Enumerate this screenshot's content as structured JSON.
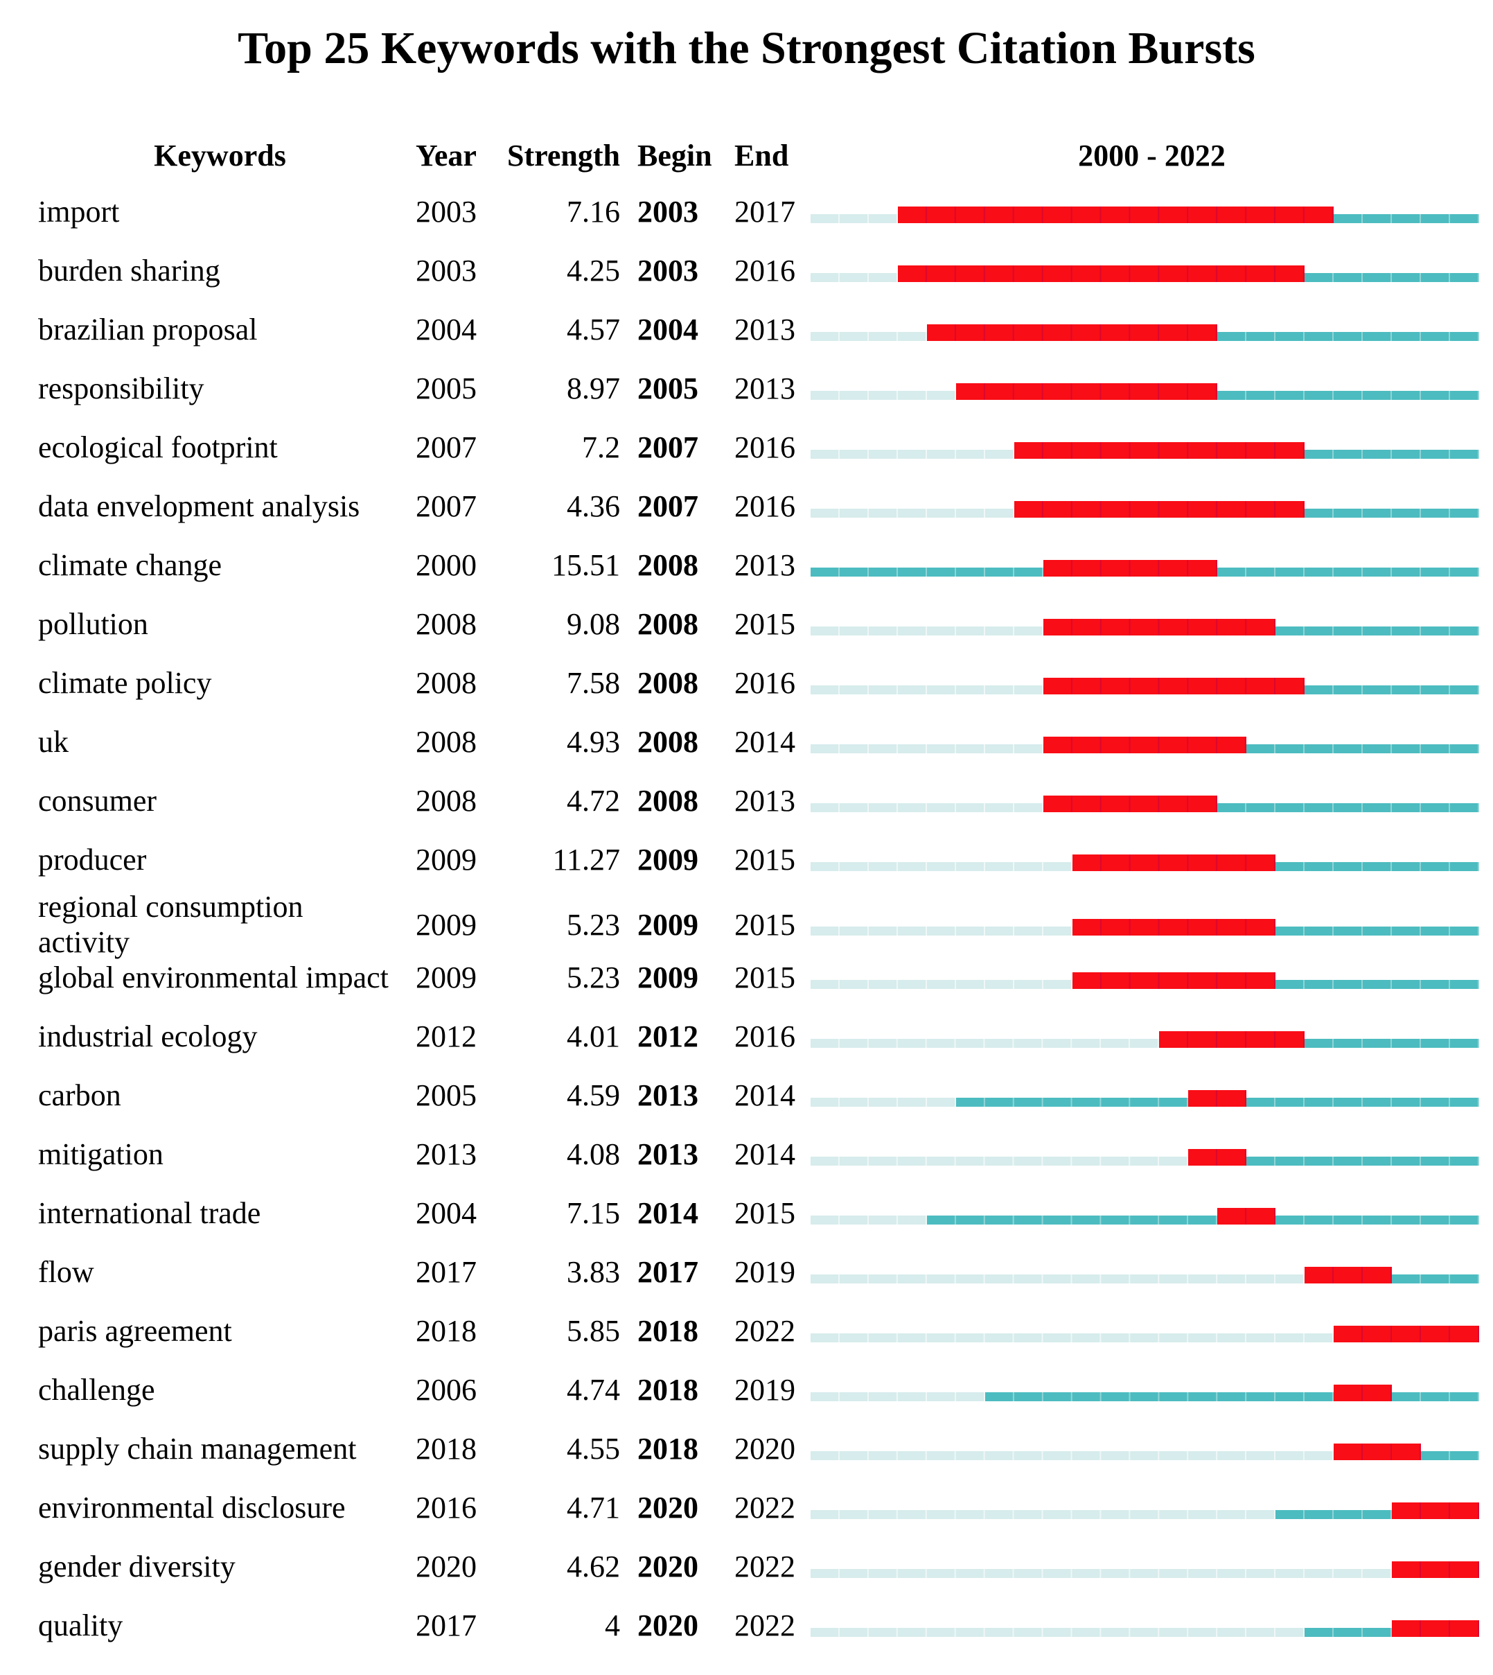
{
  "chart_data": {
    "type": "citation-burst-timeline",
    "title": "Top 25 Keywords with the Strongest Citation Bursts",
    "headers": {
      "keywords": "Keywords",
      "year": "Year",
      "strength": "Strength",
      "begin": "Begin",
      "end": "End",
      "range": "2000 - 2022"
    },
    "timeline": {
      "start": 2000,
      "end": 2022
    },
    "colors": {
      "pre_appearance": "#d7ecec",
      "active": "#4cbcc0",
      "burst": "#f90d16"
    },
    "legend_semantics": {
      "pre_appearance": "years before keyword first appeared",
      "active": "keyword active, no burst",
      "burst": "citation burst period (Begin–End)"
    },
    "rows": [
      {
        "keyword": "import",
        "year": 2003,
        "strength": "7.16",
        "begin": 2003,
        "end": 2017
      },
      {
        "keyword": "burden sharing",
        "year": 2003,
        "strength": "4.25",
        "begin": 2003,
        "end": 2016
      },
      {
        "keyword": "brazilian proposal",
        "year": 2004,
        "strength": "4.57",
        "begin": 2004,
        "end": 2013
      },
      {
        "keyword": "responsibility",
        "year": 2005,
        "strength": "8.97",
        "begin": 2005,
        "end": 2013
      },
      {
        "keyword": "ecological footprint",
        "year": 2007,
        "strength": "7.2",
        "begin": 2007,
        "end": 2016
      },
      {
        "keyword": "data envelopment analysis",
        "year": 2007,
        "strength": "4.36",
        "begin": 2007,
        "end": 2016
      },
      {
        "keyword": "climate change",
        "year": 2000,
        "strength": "15.51",
        "begin": 2008,
        "end": 2013
      },
      {
        "keyword": "pollution",
        "year": 2008,
        "strength": "9.08",
        "begin": 2008,
        "end": 2015
      },
      {
        "keyword": "climate policy",
        "year": 2008,
        "strength": "7.58",
        "begin": 2008,
        "end": 2016
      },
      {
        "keyword": "uk",
        "year": 2008,
        "strength": "4.93",
        "begin": 2008,
        "end": 2014
      },
      {
        "keyword": "consumer",
        "year": 2008,
        "strength": "4.72",
        "begin": 2008,
        "end": 2013
      },
      {
        "keyword": "producer",
        "year": 2009,
        "strength": "11.27",
        "begin": 2009,
        "end": 2015
      },
      {
        "keyword": "regional consumption activity",
        "year": 2009,
        "strength": "5.23",
        "begin": 2009,
        "end": 2015
      },
      {
        "keyword": "global environmental impact",
        "year": 2009,
        "strength": "5.23",
        "begin": 2009,
        "end": 2015
      },
      {
        "keyword": "industrial ecology",
        "year": 2012,
        "strength": "4.01",
        "begin": 2012,
        "end": 2016
      },
      {
        "keyword": "carbon",
        "year": 2005,
        "strength": "4.59",
        "begin": 2013,
        "end": 2014
      },
      {
        "keyword": "mitigation",
        "year": 2013,
        "strength": "4.08",
        "begin": 2013,
        "end": 2014
      },
      {
        "keyword": "international trade",
        "year": 2004,
        "strength": "7.15",
        "begin": 2014,
        "end": 2015
      },
      {
        "keyword": "flow",
        "year": 2017,
        "strength": "3.83",
        "begin": 2017,
        "end": 2019
      },
      {
        "keyword": "paris agreement",
        "year": 2018,
        "strength": "5.85",
        "begin": 2018,
        "end": 2022
      },
      {
        "keyword": "challenge",
        "year": 2006,
        "strength": "4.74",
        "begin": 2018,
        "end": 2019
      },
      {
        "keyword": "supply chain management",
        "year": 2018,
        "strength": "4.55",
        "begin": 2018,
        "end": 2020
      },
      {
        "keyword": "environmental disclosure",
        "year": 2016,
        "strength": "4.71",
        "begin": 2020,
        "end": 2022
      },
      {
        "keyword": "gender diversity",
        "year": 2020,
        "strength": "4.62",
        "begin": 2020,
        "end": 2022
      },
      {
        "keyword": "quality",
        "year": 2017,
        "strength": "4",
        "begin": 2020,
        "end": 2022
      }
    ]
  }
}
